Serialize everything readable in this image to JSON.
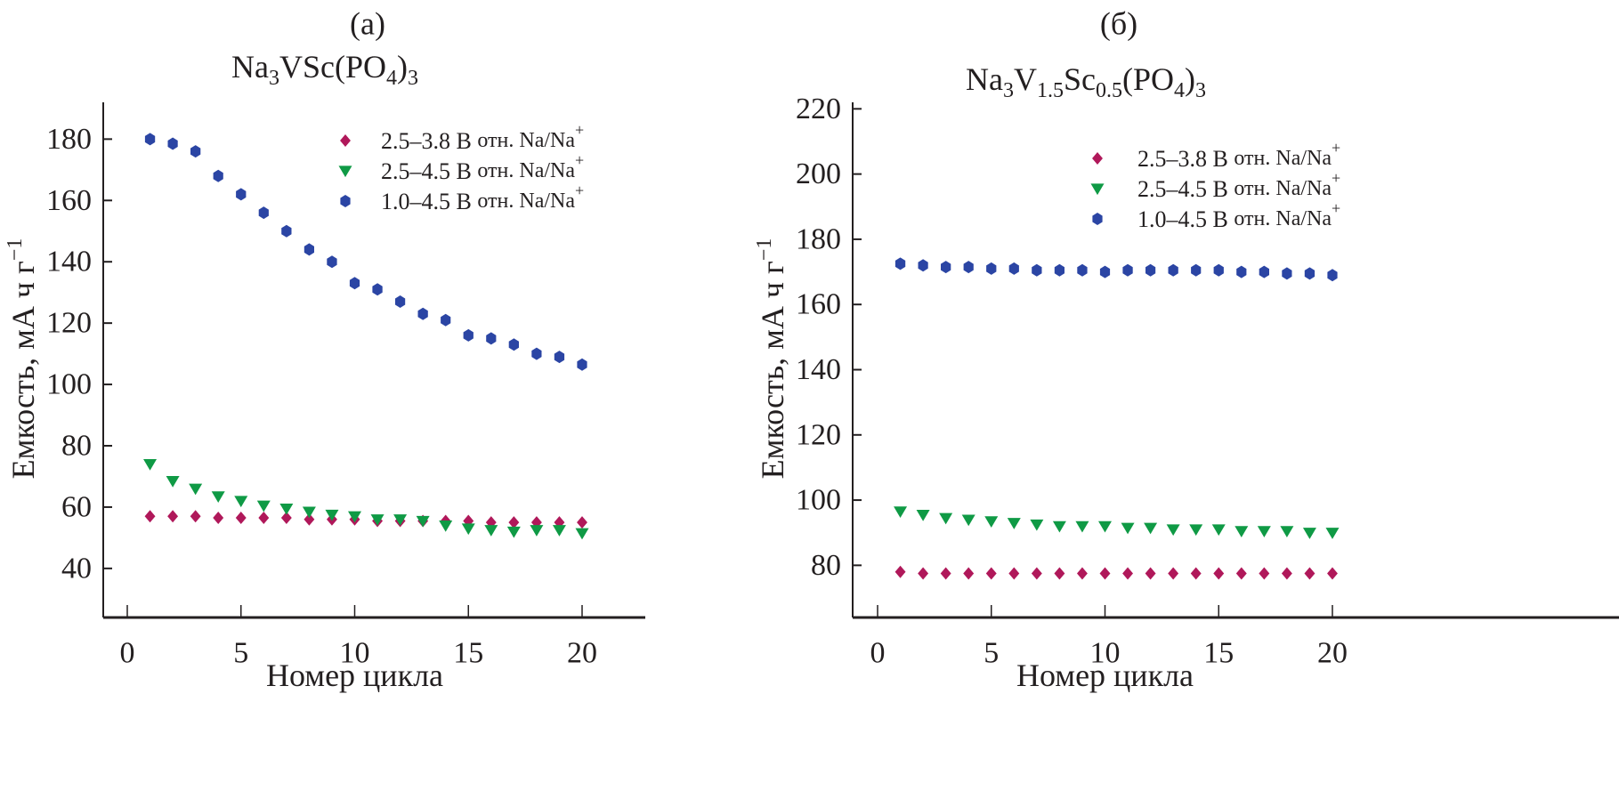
{
  "chart_data": [
    {
      "type": "scatter",
      "panel_label": "(а)",
      "title": {
        "base": "Na",
        "parts": [
          [
            "Na",
            ""
          ],
          [
            "3",
            "sub"
          ],
          [
            "VSc(PO",
            ""
          ],
          [
            "4",
            "sub"
          ],
          [
            ")",
            ""
          ],
          [
            "3",
            "sub"
          ]
        ]
      },
      "title_text": "Na3VSc(PO4)3",
      "xlabel": "Номер цикла",
      "ylabel": "Емкость, мА ч г",
      "ylabel_sup": "−1",
      "xlim": [
        -1.1,
        22.4
      ],
      "ylim": [
        24,
        192
      ],
      "xticks": [
        0,
        5,
        10,
        15,
        20
      ],
      "yticks": [
        40,
        60,
        80,
        100,
        120,
        140,
        160,
        180
      ],
      "grid": false,
      "legend_position": "top-right",
      "x": [
        1,
        2,
        3,
        4,
        5,
        6,
        7,
        8,
        9,
        10,
        11,
        12,
        13,
        14,
        15,
        16,
        17,
        18,
        19,
        20
      ],
      "series": [
        {
          "name": "2.5–3.8 В отн. Na/Na+",
          "label": "2.5–3.8 В",
          "label_rest": "отн. Na/Na",
          "label_sup": "+",
          "marker": "diamond",
          "color": "#b0185a",
          "values": [
            57,
            57,
            57,
            56.5,
            56.5,
            56.5,
            56.5,
            56,
            56,
            56,
            55.5,
            55.5,
            55.5,
            55.5,
            55.5,
            55,
            55,
            55,
            55,
            55
          ]
        },
        {
          "name": "2.5–4.5 В отн. Na/Na+",
          "label": "2.5–4.5 В",
          "label_rest": "отн. Na/Na",
          "label_sup": "+",
          "marker": "triangle-down",
          "color": "#0f9a45",
          "values": [
            74,
            68.5,
            66,
            63.5,
            62,
            60.5,
            59.5,
            58.5,
            57.5,
            57,
            56,
            56,
            55.5,
            54,
            53,
            52.5,
            52,
            52.5,
            52.5,
            51.5
          ]
        },
        {
          "name": "1.0–4.5 В отн. Na/Na+",
          "label": "1.0–4.5 В",
          "label_rest": "отн. Na/Na",
          "label_sup": "+",
          "marker": "hexagon",
          "color": "#2b45a4",
          "values": [
            180,
            178.5,
            176,
            168,
            162,
            156,
            150,
            144,
            140,
            133,
            131,
            127,
            123,
            121,
            116,
            115,
            113,
            110,
            109,
            106.5
          ]
        }
      ]
    },
    {
      "type": "scatter",
      "panel_label": "(б)",
      "title": {
        "parts": [
          [
            "Na",
            ""
          ],
          [
            "3",
            "sub"
          ],
          [
            "V",
            ""
          ],
          [
            "1.5",
            "sub"
          ],
          [
            "Sc",
            ""
          ],
          [
            "0.5",
            "sub"
          ],
          [
            "(PO",
            ""
          ],
          [
            "4",
            "sub"
          ],
          [
            ")",
            ""
          ],
          [
            "3",
            "sub"
          ]
        ]
      },
      "title_text": "Na3V1.5Sc0.5(PO4)3",
      "xlabel": "Номер цикла",
      "ylabel": "Емкость, мА ч г",
      "ylabel_sup": "−1",
      "xlim": [
        -1.1,
        22.4
      ],
      "ylim": [
        64,
        222
      ],
      "xticks": [
        0,
        5,
        10,
        15,
        20
      ],
      "yticks": [
        80,
        100,
        120,
        140,
        160,
        180,
        200,
        220
      ],
      "grid": false,
      "legend_position": "top-right",
      "x": [
        1,
        2,
        3,
        4,
        5,
        6,
        7,
        8,
        9,
        10,
        11,
        12,
        13,
        14,
        15,
        16,
        17,
        18,
        19,
        20
      ],
      "series": [
        {
          "name": "2.5–3.8 В отн. Na/Na+",
          "label": "2.5–3.8 В",
          "label_rest": "отн. Na/Na",
          "label_sup": "+",
          "marker": "diamond",
          "color": "#b0185a",
          "values": [
            78,
            77.5,
            77.5,
            77.5,
            77.5,
            77.5,
            77.5,
            77.5,
            77.5,
            77.5,
            77.5,
            77.5,
            77.5,
            77.5,
            77.5,
            77.5,
            77.5,
            77.5,
            77.5,
            77.5
          ]
        },
        {
          "name": "2.5–4.5 В отн. Na/Na+",
          "label": "2.5–4.5 В",
          "label_rest": "отн. Na/Na",
          "label_sup": "+",
          "marker": "triangle-down",
          "color": "#0f9a45",
          "values": [
            96.5,
            95.5,
            94.5,
            94,
            93.5,
            93,
            92.5,
            92,
            92,
            92,
            91.5,
            91.5,
            91,
            91,
            91,
            90.5,
            90.5,
            90.5,
            90,
            90
          ]
        },
        {
          "name": "1.0–4.5 В отн. Na/Na+",
          "label": "1.0–4.5 В",
          "label_rest": "отн. Na/Na",
          "label_sup": "+",
          "marker": "hexagon",
          "color": "#2b45a4",
          "values": [
            172.5,
            172,
            171.5,
            171.5,
            171,
            171,
            170.5,
            170.5,
            170.5,
            170,
            170.5,
            170.5,
            170.5,
            170.5,
            170.5,
            170,
            170,
            169.5,
            169.5,
            169
          ]
        }
      ]
    }
  ]
}
